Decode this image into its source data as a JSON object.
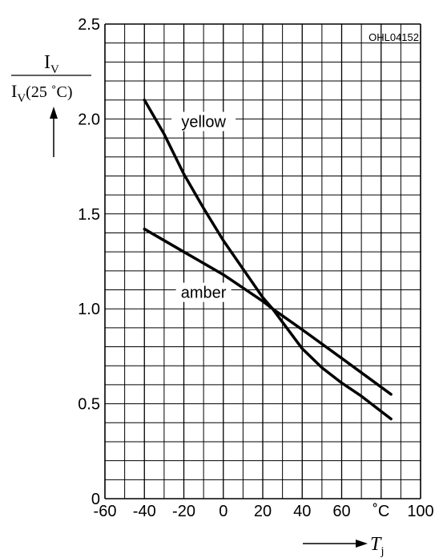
{
  "chart_data": {
    "type": "line",
    "code": "OHL04152",
    "ylabel_numerator": "I",
    "ylabel_numerator_sub": "V",
    "ylabel_denominator": "I",
    "ylabel_denominator_sub": "V",
    "ylabel_denominator_rest": "(25 ˚C)",
    "xlabel": "T",
    "xlabel_sub": "j",
    "x_unit": "˚C",
    "xlim": [
      -60,
      100
    ],
    "ylim": [
      0,
      2.5
    ],
    "x_ticks": [
      "-60",
      "-40",
      "-20",
      "0",
      "20",
      "40",
      "60",
      "100"
    ],
    "x_tick_values": [
      -60,
      -40,
      -20,
      0,
      20,
      40,
      60,
      100
    ],
    "x_unit_value": 80,
    "y_ticks": [
      "0",
      "0.5",
      "1.0",
      "1.5",
      "2.0",
      "2.5"
    ],
    "y_tick_values": [
      0,
      0.5,
      1.0,
      1.5,
      2.0,
      2.5
    ],
    "grid": true,
    "x_minor_step": 10,
    "y_minor_step": 0.1,
    "series": [
      {
        "name": "yellow",
        "label_x": -10,
        "label_y": 1.97,
        "x": [
          -40,
          -30,
          -20,
          -10,
          0,
          10,
          20,
          25,
          30,
          40,
          50,
          60,
          70,
          80,
          85
        ],
        "y": [
          2.1,
          1.92,
          1.71,
          1.53,
          1.36,
          1.21,
          1.06,
          1.0,
          0.93,
          0.79,
          0.69,
          0.61,
          0.54,
          0.46,
          0.42
        ]
      },
      {
        "name": "amber",
        "label_x": -10,
        "label_y": 1.07,
        "x": [
          -40,
          -20,
          0,
          20,
          25,
          40,
          60,
          85
        ],
        "y": [
          1.42,
          1.3,
          1.18,
          1.04,
          1.0,
          0.89,
          0.74,
          0.55
        ]
      }
    ]
  }
}
